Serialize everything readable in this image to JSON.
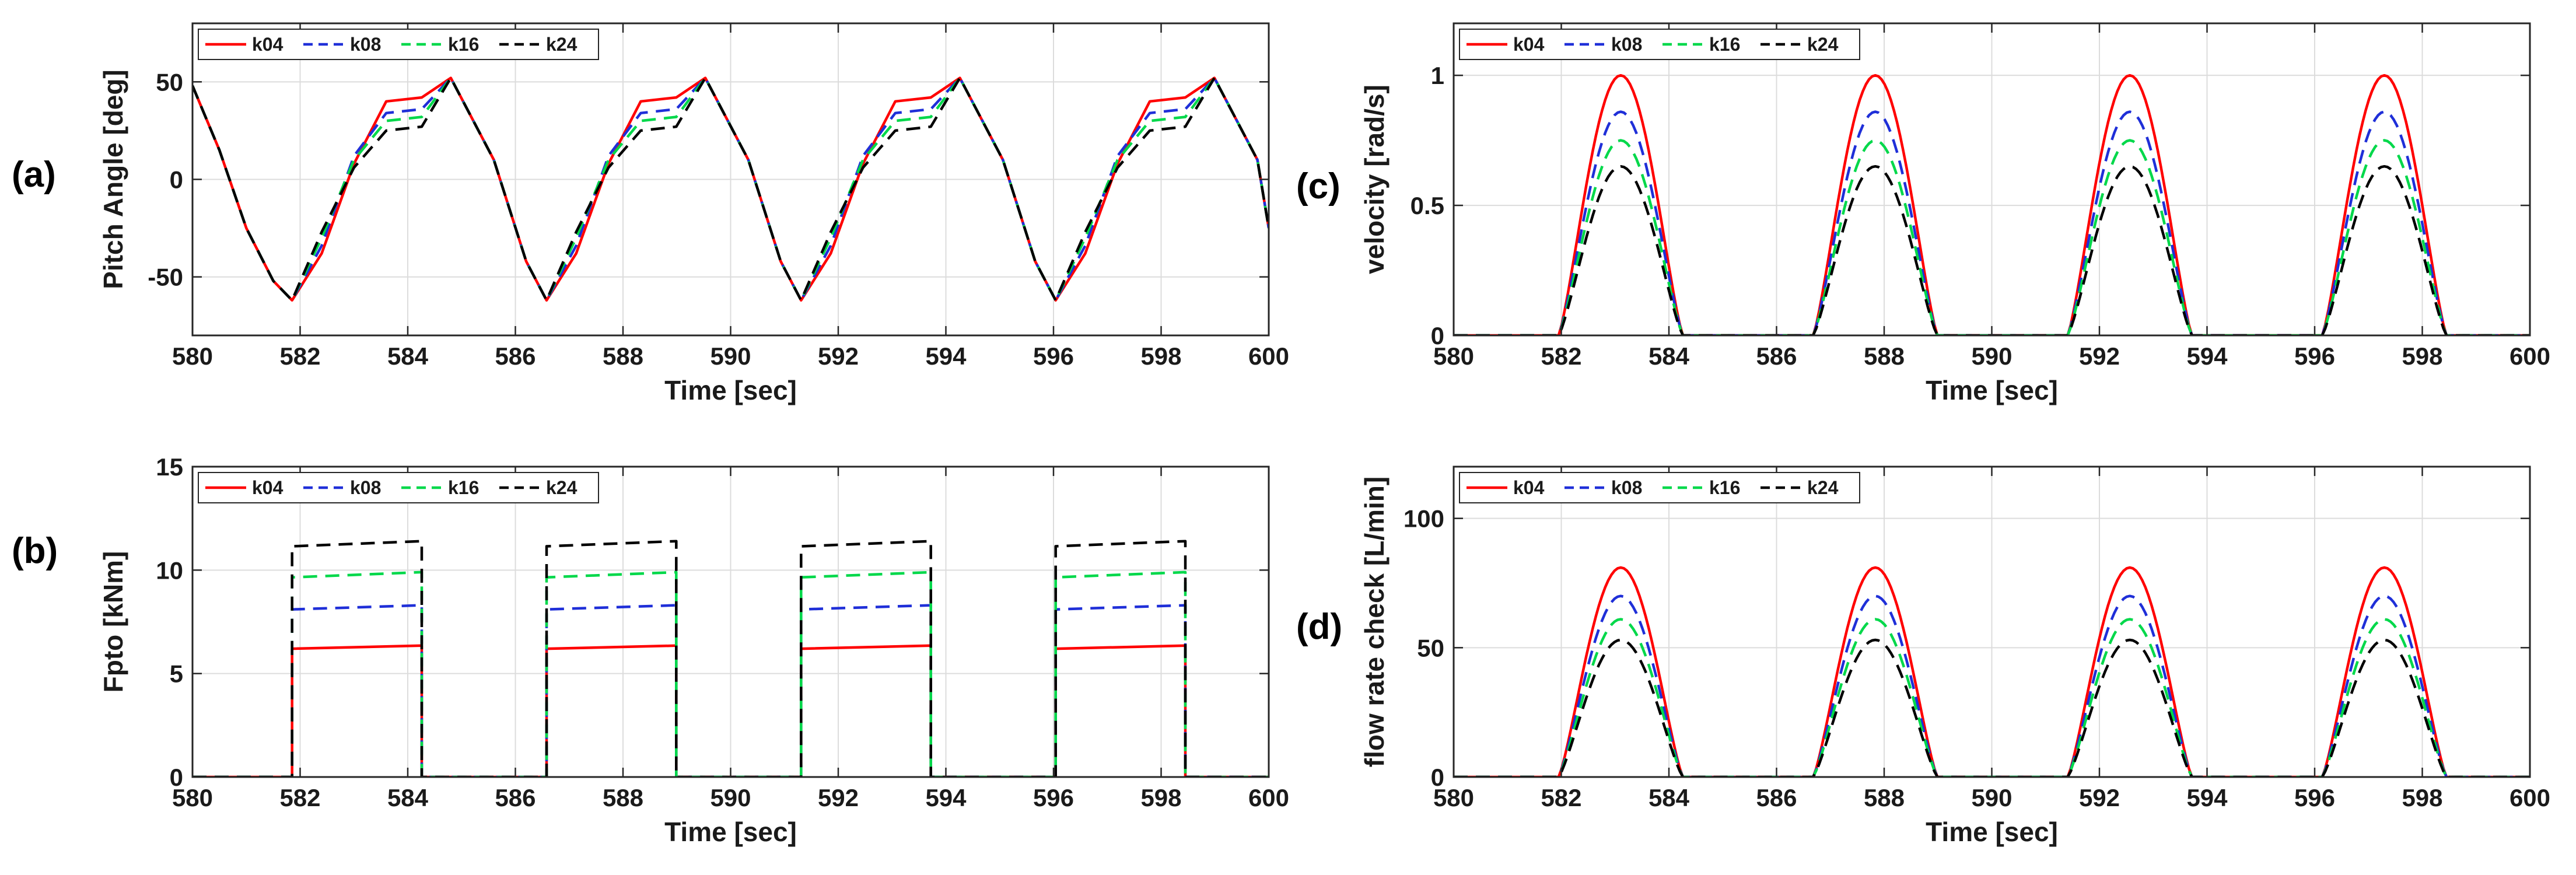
{
  "chart_data": [
    {
      "panel": "(a)",
      "type": "line",
      "title": "",
      "xlabel": "Time [sec]",
      "ylabel": "Pitch Angle [deg]",
      "xlim": [
        580,
        600
      ],
      "ylim": [
        -80,
        80
      ],
      "xticks": [
        580,
        582,
        584,
        586,
        588,
        590,
        592,
        594,
        596,
        598,
        600
      ],
      "yticks": [
        -50,
        0,
        50
      ],
      "grid": true,
      "legend": {
        "location": "top-left",
        "orientation": "horizontal"
      },
      "period": 4.73,
      "cycle_start": 581.85,
      "x": [
        580,
        580.5,
        581,
        581.5,
        581.85,
        582.4,
        583.0,
        583.6,
        584.26,
        584.8,
        585.6,
        586.2,
        586.58,
        587.13,
        587.73,
        588.33,
        588.99,
        589.53,
        590.33,
        590.93,
        591.31,
        591.86,
        592.46,
        593.06,
        593.72,
        594.26,
        595.06,
        595.66,
        596.04,
        596.59,
        597.19,
        597.79,
        598.45,
        598.99,
        599.79,
        600
      ],
      "series": [
        {
          "name": "k04",
          "color": "#ff0000",
          "dash": "solid",
          "values": [
            48,
            15,
            -25,
            -52,
            -62,
            -38,
            8,
            40,
            42,
            52,
            10,
            -42,
            -62,
            -38,
            8,
            40,
            42,
            52,
            10,
            -42,
            -62,
            -38,
            8,
            40,
            42,
            52,
            10,
            -42,
            -62,
            -38,
            8,
            40,
            42,
            52,
            10,
            -25
          ]
        },
        {
          "name": "k08",
          "color": "#1f2fd8",
          "dash": "dashed",
          "values": [
            48,
            15,
            -25,
            -52,
            -62,
            -34,
            12,
            34,
            36,
            52,
            10,
            -42,
            -62,
            -34,
            12,
            34,
            36,
            52,
            10,
            -42,
            -62,
            -34,
            12,
            34,
            36,
            52,
            10,
            -42,
            -62,
            -34,
            12,
            34,
            36,
            52,
            10,
            -25
          ]
        },
        {
          "name": "k16",
          "color": "#00d84a",
          "dash": "dashed",
          "values": [
            48,
            15,
            -25,
            -52,
            -62,
            -30,
            10,
            30,
            32,
            52,
            10,
            -42,
            -62,
            -30,
            10,
            30,
            32,
            52,
            10,
            -42,
            -62,
            -30,
            10,
            30,
            32,
            52,
            10,
            -42,
            -62,
            -30,
            10,
            30,
            32,
            52,
            10,
            -25
          ]
        },
        {
          "name": "k24",
          "color": "#000000",
          "dash": "dashed",
          "values": [
            48,
            15,
            -25,
            -52,
            -62,
            -27,
            6,
            25,
            27,
            52,
            10,
            -42,
            -62,
            -27,
            6,
            25,
            27,
            52,
            10,
            -42,
            -62,
            -27,
            6,
            25,
            27,
            52,
            10,
            -42,
            -62,
            -27,
            6,
            25,
            27,
            52,
            10,
            -25
          ]
        }
      ]
    },
    {
      "panel": "(b)",
      "type": "line",
      "title": "",
      "xlabel": "Time [sec]",
      "ylabel": "Fpto [kNm]",
      "xlim": [
        580,
        600
      ],
      "ylim": [
        0,
        15
      ],
      "xticks": [
        580,
        582,
        584,
        586,
        588,
        590,
        592,
        594,
        596,
        598,
        600
      ],
      "yticks": [
        0,
        5,
        10,
        15
      ],
      "grid": true,
      "legend": {
        "location": "top-left",
        "orientation": "horizontal"
      },
      "active_intervals": [
        [
          581.85,
          584.26
        ],
        [
          586.58,
          588.99
        ],
        [
          591.31,
          593.72
        ],
        [
          596.04,
          598.45
        ]
      ],
      "series": [
        {
          "name": "k04",
          "color": "#ff0000",
          "dash": "solid",
          "level_start": 6.2,
          "level_end": 6.35
        },
        {
          "name": "k08",
          "color": "#1f2fd8",
          "dash": "dashed",
          "level_start": 8.1,
          "level_end": 8.3
        },
        {
          "name": "k16",
          "color": "#00d84a",
          "dash": "dashed",
          "level_start": 9.65,
          "level_end": 9.9
        },
        {
          "name": "k24",
          "color": "#000000",
          "dash": "dashed",
          "level_start": 11.15,
          "level_end": 11.4
        }
      ]
    },
    {
      "panel": "(c)",
      "type": "line",
      "title": "",
      "xlabel": "Time [sec]",
      "ylabel": "velocity [rad/s]",
      "xlim": [
        580,
        600
      ],
      "ylim": [
        0,
        1.2
      ],
      "xticks": [
        580,
        582,
        584,
        586,
        588,
        590,
        592,
        594,
        596,
        598,
        600
      ],
      "yticks": [
        0,
        0.5,
        1
      ],
      "grid": true,
      "legend": {
        "location": "top-left",
        "orientation": "horizontal"
      },
      "pulse_intervals": [
        [
          581.95,
          584.26
        ],
        [
          586.68,
          588.99
        ],
        [
          591.41,
          593.72
        ],
        [
          596.14,
          598.45
        ]
      ],
      "series": [
        {
          "name": "k04",
          "color": "#ff0000",
          "dash": "solid",
          "peak": 1.0
        },
        {
          "name": "k08",
          "color": "#1f2fd8",
          "dash": "dashed",
          "peak": 0.86
        },
        {
          "name": "k16",
          "color": "#00d84a",
          "dash": "dashed",
          "peak": 0.75
        },
        {
          "name": "k24",
          "color": "#000000",
          "dash": "dashed",
          "peak": 0.65
        }
      ]
    },
    {
      "panel": "(d)",
      "type": "line",
      "title": "",
      "xlabel": "Time [sec]",
      "ylabel": "flow rate check [L/min]",
      "xlim": [
        580,
        600
      ],
      "ylim": [
        0,
        120
      ],
      "xticks": [
        580,
        582,
        584,
        586,
        588,
        590,
        592,
        594,
        596,
        598,
        600
      ],
      "yticks": [
        0,
        50,
        100
      ],
      "grid": true,
      "legend": {
        "location": "top-left",
        "orientation": "horizontal"
      },
      "pulse_intervals": [
        [
          581.95,
          584.26
        ],
        [
          586.68,
          588.99
        ],
        [
          591.41,
          593.72
        ],
        [
          596.14,
          598.45
        ]
      ],
      "series": [
        {
          "name": "k04",
          "color": "#ff0000",
          "dash": "solid",
          "peak": 81
        },
        {
          "name": "k08",
          "color": "#1f2fd8",
          "dash": "dashed",
          "peak": 70
        },
        {
          "name": "k16",
          "color": "#00d84a",
          "dash": "dashed",
          "peak": 61
        },
        {
          "name": "k24",
          "color": "#000000",
          "dash": "dashed",
          "peak": 53
        }
      ]
    }
  ]
}
